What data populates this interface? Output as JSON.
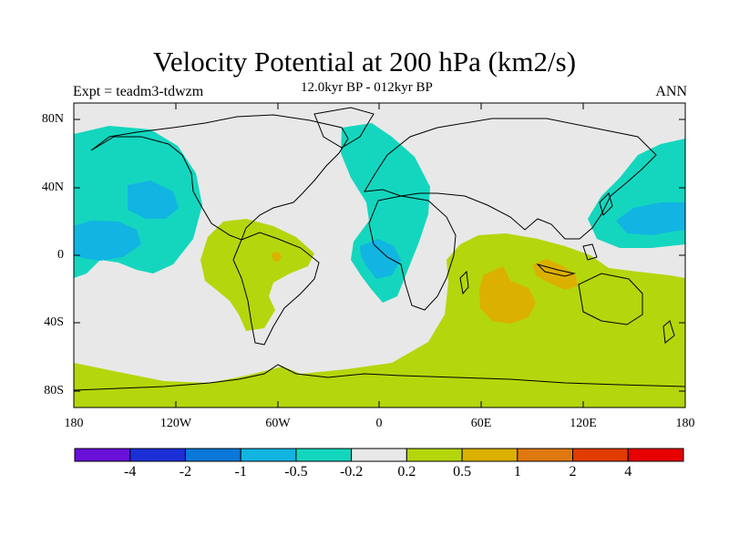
{
  "title": "Velocity Potential at 200 hPa (km2/s)",
  "subtitle": "12.0kyr BP - 012kyr BP",
  "left_label": "Expt = teadm3-tdwzm",
  "right_label": "ANN",
  "lat_labels": [
    "80N",
    "40N",
    "0",
    "40S",
    "80S"
  ],
  "lon_labels": [
    "180",
    "120W",
    "60W",
    "0",
    "60E",
    "120E",
    "180"
  ],
  "colorbar": {
    "colors": [
      "#6a10d8",
      "#1c2fd6",
      "#0a78d8",
      "#12b4e2",
      "#14d6be",
      "#e8e8e8",
      "#b4d60c",
      "#dcb000",
      "#e07810",
      "#e03c00",
      "#e80000"
    ],
    "labels": [
      "-4",
      "-2",
      "-1",
      "-0.5",
      "-0.2",
      "0.2",
      "0.5",
      "1",
      "2",
      "4"
    ]
  },
  "colors": {
    "background": "#e8e8e8",
    "neg_weak": "#14d6be",
    "neg_mid": "#12b4e2",
    "pos_weak": "#b4d60c",
    "pos_mid": "#dcb000",
    "pos_strong": "#e07810"
  }
}
